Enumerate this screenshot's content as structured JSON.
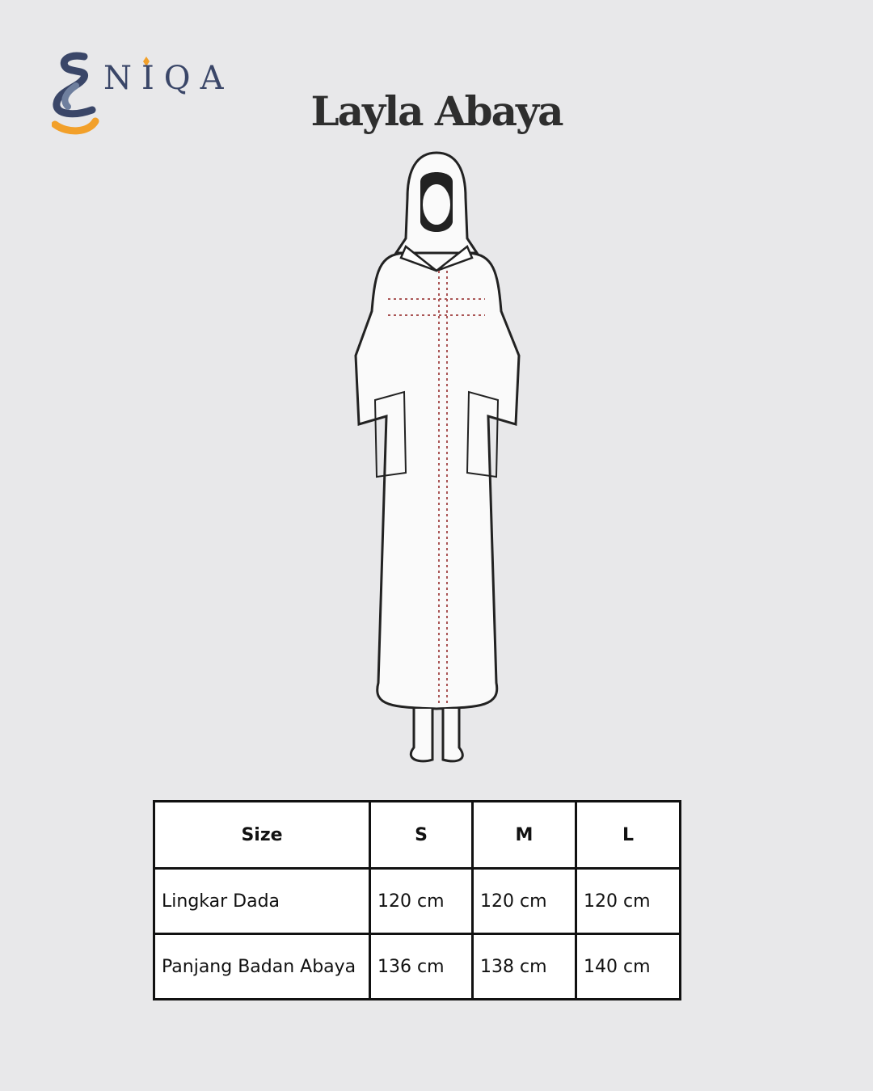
{
  "brand": {
    "logo_text": "NIQA",
    "colors": {
      "navy": "#3a4668",
      "slate": "#6f7f9e",
      "orange": "#f2a02a"
    }
  },
  "title": "Layla Abaya",
  "illustration": {
    "icon": "abaya-figure-illustration"
  },
  "size_table": {
    "headers": [
      "Size",
      "S",
      "M",
      "L"
    ],
    "rows": [
      {
        "label": "Lingkar Dada",
        "values": [
          "120 cm",
          "120 cm",
          "120 cm"
        ]
      },
      {
        "label": "Panjang Badan Abaya",
        "values": [
          "136 cm",
          "138 cm",
          "140 cm"
        ]
      }
    ]
  }
}
